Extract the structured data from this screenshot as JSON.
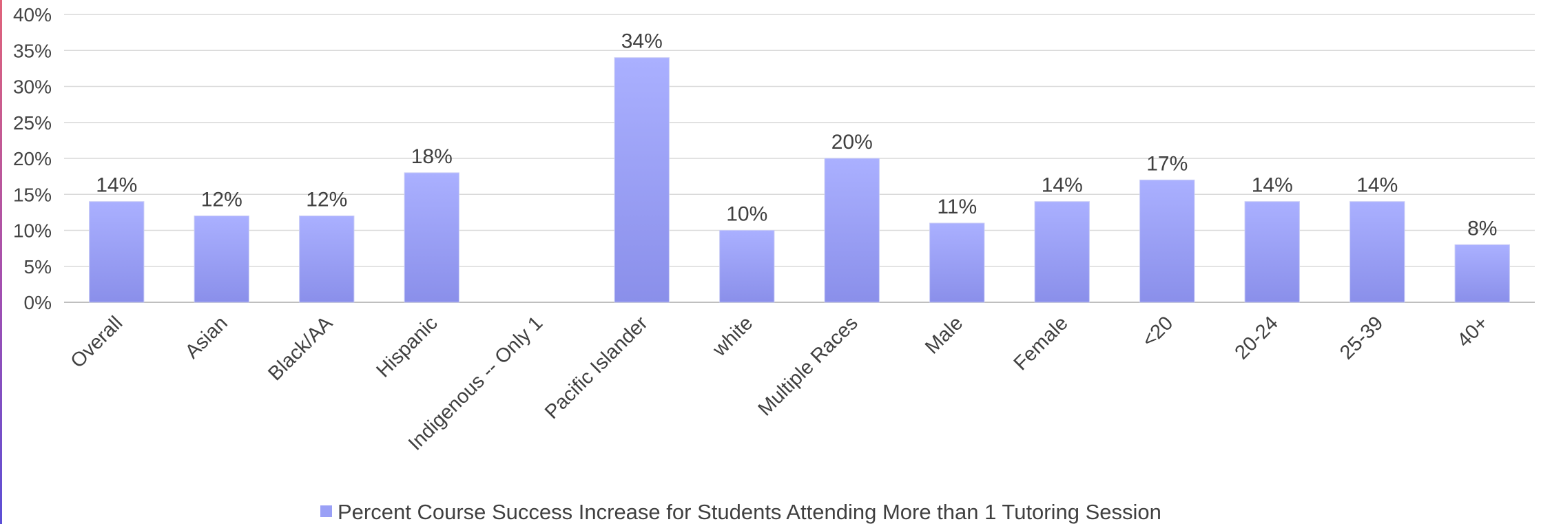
{
  "chart_data": {
    "type": "bar",
    "categories": [
      "Overall",
      "Asian",
      "Black/AA",
      "Hispanic",
      "Indigenous -- Only 1",
      "Pacific Islander",
      "white",
      "Multiple Races",
      "Male",
      "Female",
      "<20",
      "20-24",
      "25-39",
      "40+"
    ],
    "series": [
      {
        "name": "Percent Course  Success Increase for Students Attending More than 1 Tutoring Session",
        "values": [
          14,
          12,
          12,
          18,
          null,
          34,
          10,
          20,
          11,
          14,
          17,
          14,
          14,
          8
        ]
      }
    ],
    "data_labels": [
      "14%",
      "12%",
      "12%",
      "18%",
      "",
      "34%",
      "10%",
      "20%",
      "11%",
      "14%",
      "17%",
      "14%",
      "14%",
      "8%"
    ],
    "y_ticks": [
      "0%",
      "5%",
      "10%",
      "15%",
      "20%",
      "25%",
      "30%",
      "35%",
      "40%"
    ],
    "ylim": [
      0,
      40
    ],
    "y_step": 5,
    "grid": true,
    "legend_position": "bottom",
    "colors": {
      "bar_top": "#aab0ff",
      "bar_bottom": "#8a8fea",
      "bar_edge": "#c9ccf5",
      "gridline": "#d9d9d9",
      "axis": "#bfbfbf",
      "legend_swatch": "#9aa0f6"
    }
  }
}
